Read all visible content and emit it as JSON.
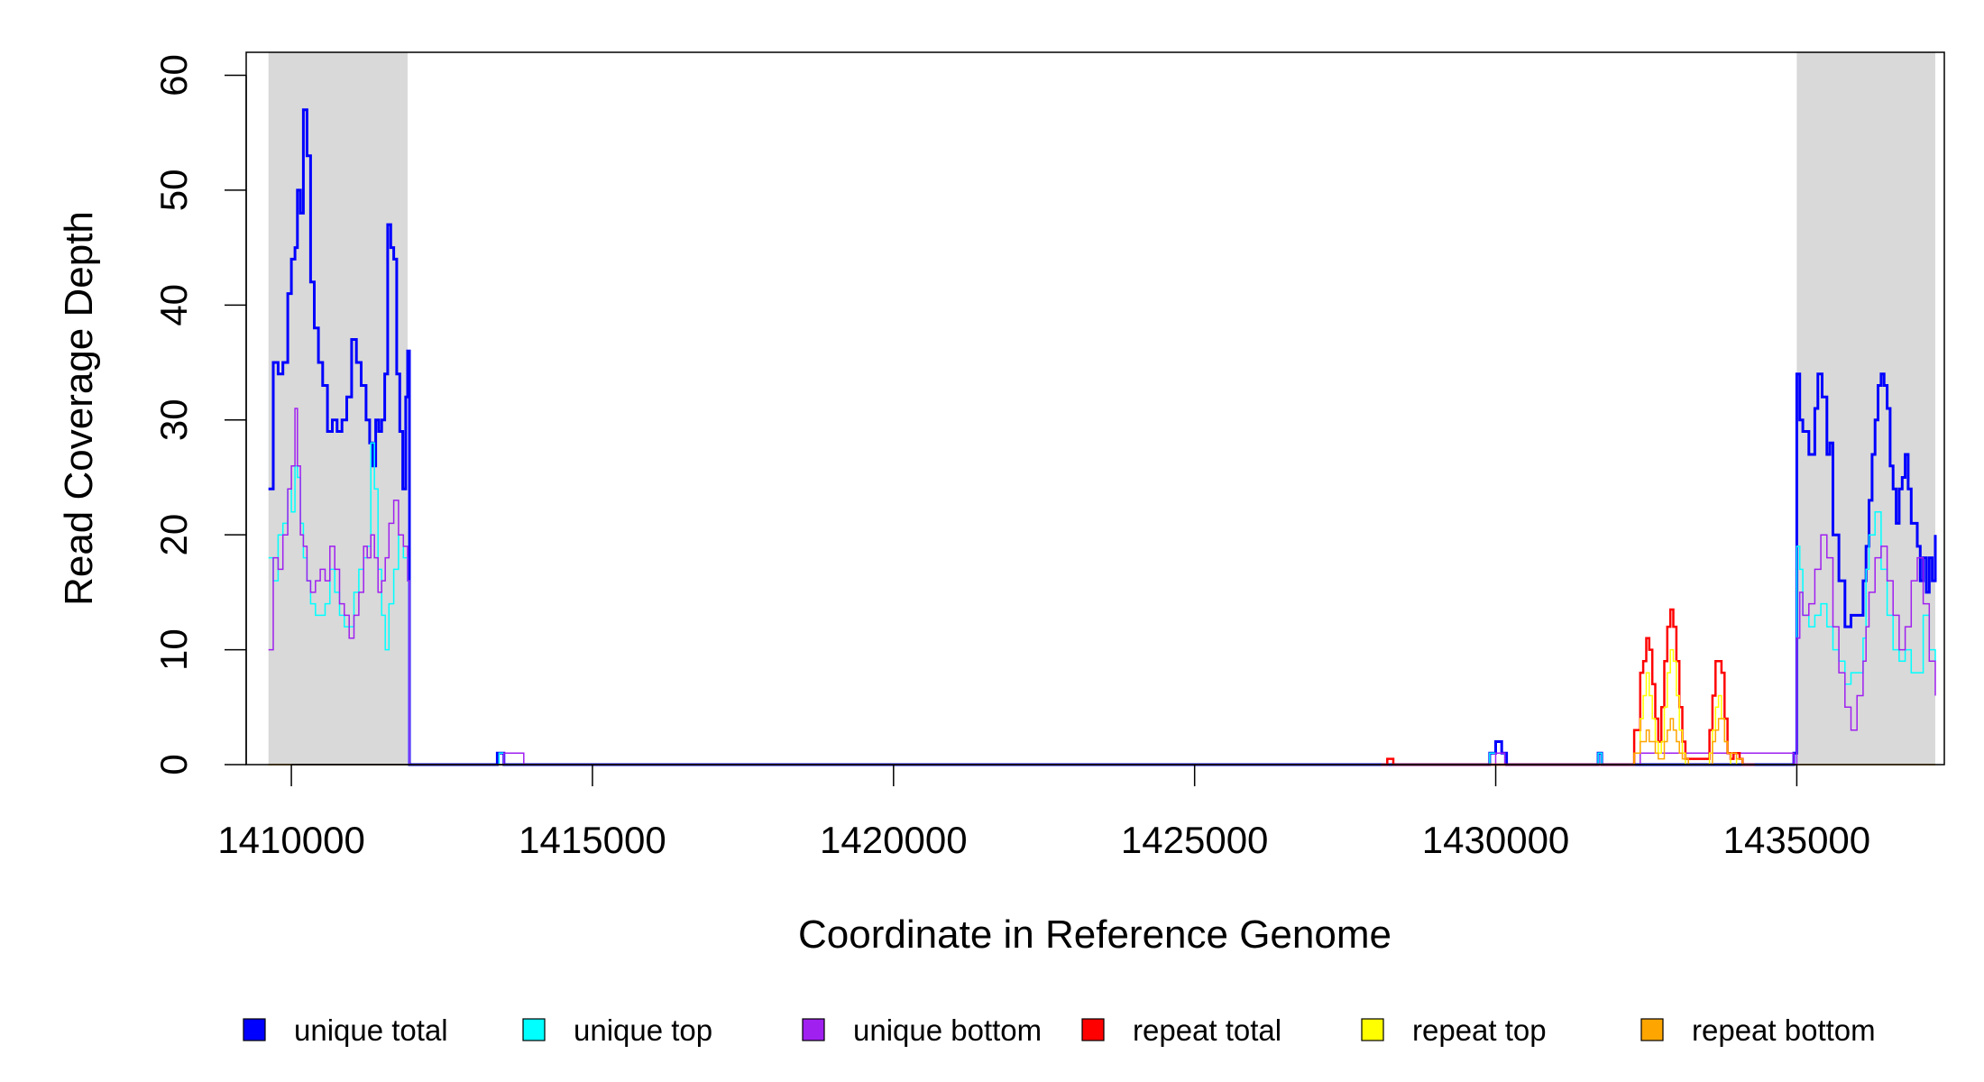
{
  "chart_data": {
    "type": "line",
    "title": "",
    "xlabel": "Coordinate in Reference Genome",
    "ylabel": "Read Coverage Depth",
    "xlim": [
      1409250,
      1437450
    ],
    "ylim": [
      0,
      62
    ],
    "x_ticks": [
      1410000,
      1415000,
      1420000,
      1425000,
      1430000,
      1435000
    ],
    "x_tick_labels": [
      "1410000",
      "1415000",
      "1420000",
      "1425000",
      "1430000",
      "1435000"
    ],
    "y_ticks": [
      0,
      10,
      20,
      30,
      40,
      50,
      60
    ],
    "y_tick_labels": [
      "0",
      "10",
      "20",
      "30",
      "40",
      "50",
      "60"
    ],
    "grid": false,
    "legend_position": "bottom",
    "shaded_regions": [
      {
        "x_start": 1409620,
        "x_end": 1411930,
        "color": "#d9d9d9"
      },
      {
        "x_start": 1435000,
        "x_end": 1437300,
        "color": "#d9d9d9"
      }
    ],
    "series": [
      {
        "name": "unique total",
        "color": "#0000ff",
        "width": 3,
        "x": [
          1409620,
          1409700,
          1409780,
          1409860,
          1409940,
          1410000,
          1410060,
          1410100,
          1410150,
          1410200,
          1410260,
          1410320,
          1410380,
          1410450,
          1410520,
          1410600,
          1410680,
          1410760,
          1410840,
          1410920,
          1411000,
          1411080,
          1411160,
          1411240,
          1411300,
          1411350,
          1411400,
          1411450,
          1411500,
          1411550,
          1411600,
          1411650,
          1411700,
          1411750,
          1411800,
          1411850,
          1411900,
          1411930,
          1411960,
          1413200,
          1413420,
          1413500,
          1413530,
          1413820,
          1413860,
          1429800,
          1429900,
          1430000,
          1430100,
          1430180,
          1430220,
          1431500,
          1431700,
          1431760,
          1432200,
          1432400,
          1434950,
          1435000,
          1435050,
          1435100,
          1435200,
          1435300,
          1435350,
          1435420,
          1435500,
          1435550,
          1435600,
          1435700,
          1435800,
          1435900,
          1436000,
          1436100,
          1436150,
          1436200,
          1436250,
          1436300,
          1436350,
          1436400,
          1436450,
          1436500,
          1436550,
          1436600,
          1436650,
          1436700,
          1436750,
          1436800,
          1436850,
          1436900,
          1436950,
          1437000,
          1437050,
          1437100,
          1437150,
          1437200,
          1437250,
          1437300
        ],
        "y": [
          24,
          35,
          34,
          35,
          41,
          44,
          45,
          50,
          48,
          57,
          53,
          42,
          38,
          35,
          33,
          29,
          30,
          29,
          30,
          32,
          37,
          35,
          33,
          30,
          28,
          26,
          30,
          29,
          30,
          34,
          47,
          45,
          44,
          34,
          29,
          24,
          32,
          36,
          0,
          0,
          1,
          1,
          0,
          0,
          0,
          0,
          1,
          2,
          1,
          0,
          0,
          0,
          1,
          0,
          0,
          0,
          1,
          34,
          30,
          29,
          27,
          31,
          34,
          32,
          27,
          28,
          20,
          16,
          12,
          13,
          13,
          16,
          19,
          23,
          27,
          30,
          33,
          34,
          33,
          31,
          26,
          24,
          21,
          24,
          25,
          27,
          24,
          21,
          21,
          19,
          16,
          18,
          15,
          18,
          16,
          20
        ]
      },
      {
        "name": "unique top",
        "color": "#00ffff",
        "width": 1.5,
        "x": [
          1409620,
          1409700,
          1409780,
          1409860,
          1409940,
          1410000,
          1410060,
          1410100,
          1410150,
          1410200,
          1410260,
          1410320,
          1410400,
          1410480,
          1410560,
          1410640,
          1410720,
          1410800,
          1410880,
          1410960,
          1411040,
          1411120,
          1411200,
          1411260,
          1411320,
          1411380,
          1411440,
          1411500,
          1411560,
          1411620,
          1411700,
          1411780,
          1411860,
          1411930,
          1411960,
          1413250,
          1413450,
          1413500,
          1413530,
          1413830,
          1413860,
          1429800,
          1429900,
          1430050,
          1430150,
          1431500,
          1431700,
          1431760,
          1434950,
          1435000,
          1435050,
          1435100,
          1435200,
          1435300,
          1435400,
          1435500,
          1435600,
          1435700,
          1435800,
          1435900,
          1436000,
          1436100,
          1436150,
          1436200,
          1436300,
          1436400,
          1436500,
          1436600,
          1436700,
          1436800,
          1436900,
          1437000,
          1437100,
          1437200,
          1437300
        ],
        "y": [
          18,
          16,
          20,
          21,
          24,
          22,
          26,
          25,
          21,
          18,
          16,
          14,
          13,
          13,
          14,
          17,
          15,
          13,
          12,
          12,
          15,
          17,
          18,
          19,
          28,
          24,
          17,
          13,
          10,
          14,
          17,
          20,
          18,
          16,
          0,
          0,
          1,
          1,
          0,
          0,
          0,
          0,
          1,
          1,
          0,
          0,
          1,
          0,
          0,
          19,
          17,
          13,
          12,
          13,
          14,
          12,
          10,
          9,
          7,
          8,
          8,
          11,
          17,
          20,
          22,
          17,
          13,
          10,
          9,
          10,
          8,
          8,
          13,
          10,
          9
        ]
      },
      {
        "name": "unique bottom",
        "color": "#a020f0",
        "width": 1.5,
        "x": [
          1409620,
          1409700,
          1409780,
          1409860,
          1409940,
          1410000,
          1410060,
          1410100,
          1410150,
          1410200,
          1410260,
          1410320,
          1410400,
          1410480,
          1410560,
          1410640,
          1410720,
          1410800,
          1410880,
          1410960,
          1411040,
          1411120,
          1411200,
          1411260,
          1411320,
          1411380,
          1411440,
          1411500,
          1411560,
          1411620,
          1411700,
          1411780,
          1411860,
          1411930,
          1411960,
          1413500,
          1413530,
          1413820,
          1413860,
          1429850,
          1430000,
          1430150,
          1432200,
          1432400,
          1434950,
          1435000,
          1435050,
          1435100,
          1435200,
          1435300,
          1435400,
          1435500,
          1435600,
          1435700,
          1435800,
          1435900,
          1436000,
          1436100,
          1436150,
          1436200,
          1436300,
          1436400,
          1436500,
          1436600,
          1436700,
          1436800,
          1436900,
          1437000,
          1437100,
          1437200,
          1437300
        ],
        "y": [
          10,
          18,
          17,
          20,
          24,
          26,
          31,
          26,
          20,
          19,
          16,
          15,
          16,
          17,
          16,
          19,
          17,
          14,
          13,
          11,
          13,
          15,
          19,
          18,
          20,
          18,
          15,
          16,
          18,
          21,
          23,
          20,
          19,
          16,
          0,
          0,
          1,
          1,
          0,
          0,
          1,
          0,
          0,
          1,
          0,
          11,
          15,
          13,
          14,
          17,
          20,
          18,
          12,
          8,
          5,
          3,
          6,
          9,
          12,
          15,
          18,
          19,
          16,
          13,
          10,
          12,
          16,
          18,
          14,
          9,
          6
        ]
      },
      {
        "name": "repeat total",
        "color": "#ff0000",
        "width": 2.5,
        "x": [
          1428100,
          1428200,
          1428300,
          1432200,
          1432300,
          1432400,
          1432450,
          1432500,
          1432550,
          1432600,
          1432650,
          1432700,
          1432750,
          1432800,
          1432850,
          1432900,
          1432950,
          1433000,
          1433050,
          1433100,
          1433150,
          1433200,
          1433300,
          1433500,
          1433550,
          1433600,
          1433650,
          1433700,
          1433750,
          1433800,
          1433850,
          1433900,
          1433950,
          1434000,
          1434050,
          1434100,
          1434200,
          1434300
        ],
        "y": [
          0,
          0.5,
          0,
          0,
          3,
          8,
          9,
          11,
          10,
          7,
          4,
          2,
          5,
          9,
          12,
          13.5,
          12,
          9,
          5,
          2,
          0.5,
          0.5,
          0.5,
          0.5,
          3,
          6,
          9,
          9,
          8,
          4,
          1,
          0.5,
          1,
          1,
          0.5,
          0,
          0,
          0
        ]
      },
      {
        "name": "repeat top",
        "color": "#ffff00",
        "width": 1.5,
        "x": [
          1432200,
          1432300,
          1432400,
          1432450,
          1432500,
          1432550,
          1432600,
          1432650,
          1432700,
          1432750,
          1432800,
          1432850,
          1432900,
          1432950,
          1433000,
          1433050,
          1433100,
          1433150,
          1433200,
          1433300,
          1433500,
          1433550,
          1433600,
          1433650,
          1433700,
          1433750,
          1433800,
          1433850,
          1433900,
          1434000,
          1434100,
          1434200
        ],
        "y": [
          0,
          1,
          4,
          6,
          8,
          6,
          4,
          2,
          1,
          2,
          5,
          8,
          10,
          9,
          6,
          3,
          1,
          0,
          0,
          0,
          0,
          1,
          3,
          5,
          6,
          4,
          2,
          1,
          0,
          0.5,
          0,
          0
        ]
      },
      {
        "name": "repeat bottom",
        "color": "#ffa500",
        "width": 1.5,
        "x": [
          1409620,
          1432200,
          1432300,
          1432400,
          1432500,
          1432550,
          1432600,
          1432650,
          1432700,
          1432800,
          1432850,
          1432900,
          1432950,
          1433000,
          1433050,
          1433100,
          1433200,
          1433500,
          1433600,
          1433650,
          1433700,
          1433750,
          1433800,
          1433850,
          1434000,
          1434100,
          1434300,
          1437300
        ],
        "y": [
          0,
          0,
          1,
          2,
          3,
          2,
          2,
          1,
          0.5,
          2,
          3,
          4,
          3,
          2,
          1,
          0.5,
          0,
          0,
          2,
          3,
          4,
          4,
          2,
          1,
          0.5,
          0,
          0,
          0
        ]
      }
    ]
  }
}
